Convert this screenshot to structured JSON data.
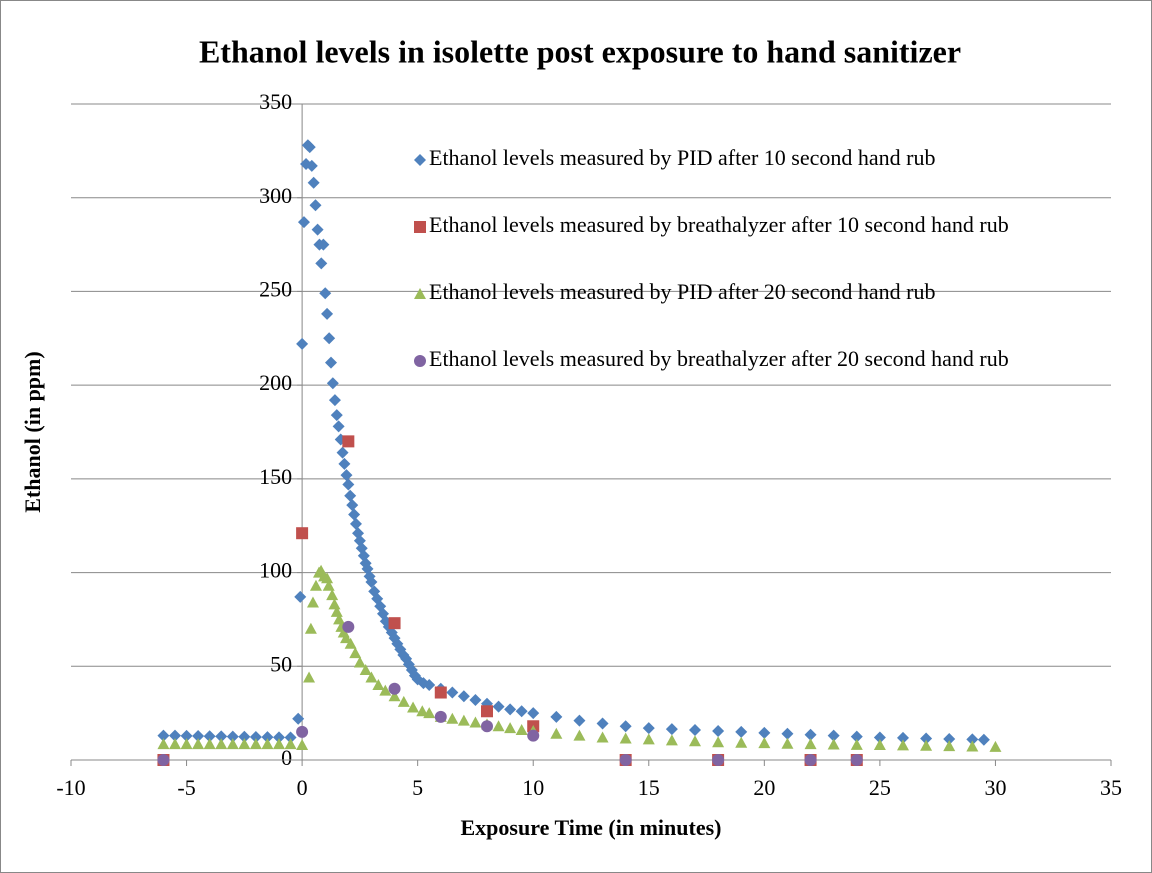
{
  "chart_data": {
    "type": "scatter",
    "title": "Ethanol levels in isolette post exposure to hand sanitizer",
    "x_label": "Exposure Time (in minutes)",
    "y_label": "Ethanol (in ppm)",
    "xlim": [
      -10,
      35
    ],
    "xticks": [
      -10,
      -5,
      0,
      5,
      10,
      15,
      20,
      25,
      30,
      35
    ],
    "ylim": [
      0,
      350
    ],
    "yticks": [
      0,
      50,
      100,
      150,
      200,
      250,
      300,
      350
    ],
    "grid": true,
    "legend": "upper right",
    "series": [
      {
        "name": "Ethanol levels measured by PID after 10 second hand rub",
        "color": "#4f81bd",
        "marker": "diamond",
        "x": [
          -6,
          -5.5,
          -5,
          -4.5,
          -4,
          -3.5,
          -3,
          -2.5,
          -2,
          -1.5,
          -1,
          -0.5,
          -0.17,
          -0.08,
          0,
          0.08,
          0.17,
          0.25,
          0.33,
          0.42,
          0.5,
          0.58,
          0.67,
          0.75,
          0.83,
          0.92,
          1.0,
          1.08,
          1.17,
          1.25,
          1.33,
          1.42,
          1.5,
          1.58,
          1.67,
          1.75,
          1.83,
          1.92,
          2.0,
          2.08,
          2.17,
          2.25,
          2.33,
          2.42,
          2.5,
          2.58,
          2.67,
          2.75,
          2.83,
          2.92,
          3.0,
          3.12,
          3.25,
          3.38,
          3.5,
          3.62,
          3.75,
          3.88,
          4.0,
          4.12,
          4.25,
          4.38,
          4.5,
          4.62,
          4.75,
          4.88,
          5.0,
          5.25,
          5.5,
          6,
          6.5,
          7,
          7.5,
          8,
          8.5,
          9,
          9.5,
          10,
          11,
          12,
          13,
          14,
          15,
          16,
          17,
          18,
          19,
          20,
          21,
          22,
          23,
          24,
          25,
          26,
          27,
          28,
          29,
          29.5
        ],
        "values": [
          13,
          13,
          12.9,
          12.8,
          12.7,
          12.6,
          12.5,
          12.4,
          12.3,
          12.2,
          12.1,
          12,
          22,
          87,
          222,
          287,
          318,
          328,
          327,
          317,
          308,
          296,
          283,
          275,
          265,
          275,
          249,
          238,
          225,
          212,
          201,
          192,
          184,
          178,
          171,
          164,
          158,
          152,
          147,
          141,
          136,
          131,
          126,
          121,
          117,
          113,
          109,
          105,
          102,
          98,
          95,
          90,
          86,
          82,
          78,
          74,
          71,
          68,
          65,
          62,
          59,
          56,
          54,
          51,
          48,
          45,
          43,
          41,
          40,
          38,
          36,
          34,
          32,
          30,
          28.5,
          27,
          26,
          25,
          23,
          21,
          19.5,
          18,
          17,
          16.5,
          16,
          15.5,
          15,
          14.5,
          14,
          13.5,
          13,
          12.5,
          12,
          11.8,
          11.5,
          11.2,
          11,
          10.8
        ]
      },
      {
        "name": "Ethanol levels measured by breathalyzer after 10 second hand rub",
        "color": "#c0504d",
        "marker": "square",
        "x": [
          -6,
          0,
          2,
          4,
          6,
          8,
          10,
          14,
          18,
          22,
          24
        ],
        "values": [
          0,
          121,
          170,
          73,
          36,
          26,
          18,
          0,
          0,
          0,
          0
        ]
      },
      {
        "name": "Ethanol levels measured by PID after 20 second hand rub",
        "color": "#9bbb59",
        "marker": "triangle",
        "x": [
          -6,
          -5.5,
          -5,
          -4.5,
          -4,
          -3.5,
          -3,
          -2.5,
          -2,
          -1.5,
          -1,
          -0.5,
          0,
          0.3,
          0.38,
          0.47,
          0.6,
          0.73,
          0.82,
          0.95,
          1.08,
          1.15,
          1.3,
          1.4,
          1.5,
          1.6,
          1.7,
          1.8,
          1.9,
          2.1,
          2.3,
          2.5,
          2.75,
          3,
          3.3,
          3.6,
          4,
          4.4,
          4.8,
          5.2,
          5.5,
          6,
          6.5,
          7,
          7.5,
          8,
          8.5,
          9,
          9.5,
          10,
          11,
          12,
          13,
          14,
          15,
          16,
          17,
          18,
          19,
          20,
          21,
          22,
          23,
          24,
          25,
          26,
          27,
          28,
          29,
          30
        ],
        "values": [
          8.5,
          8.5,
          8.5,
          8.5,
          8.5,
          8.5,
          8.5,
          8.5,
          8.5,
          8.5,
          8.5,
          8.5,
          8,
          44,
          70,
          84,
          93,
          100,
          101,
          98,
          97,
          93,
          88,
          83,
          79,
          75,
          71,
          68,
          65,
          62,
          57,
          52,
          48,
          44,
          40,
          37,
          34,
          31,
          28,
          26,
          25,
          23,
          22,
          21,
          20,
          19,
          18,
          17,
          16,
          15.5,
          14,
          13,
          12,
          11.5,
          11,
          10.5,
          10,
          9.5,
          9.2,
          9,
          8.7,
          8.5,
          8.3,
          8.1,
          8,
          7.8,
          7.6,
          7.4,
          7.2,
          7
        ]
      },
      {
        "name": "Ethanol levels measured by breathalyzer after 20 second hand rub",
        "color": "#8064a2",
        "marker": "circle",
        "x": [
          -6,
          0,
          2,
          4,
          6,
          8,
          10,
          14,
          18,
          22,
          24
        ],
        "values": [
          0,
          15,
          71,
          38,
          23,
          18,
          13,
          0,
          0,
          0,
          0
        ]
      }
    ]
  }
}
